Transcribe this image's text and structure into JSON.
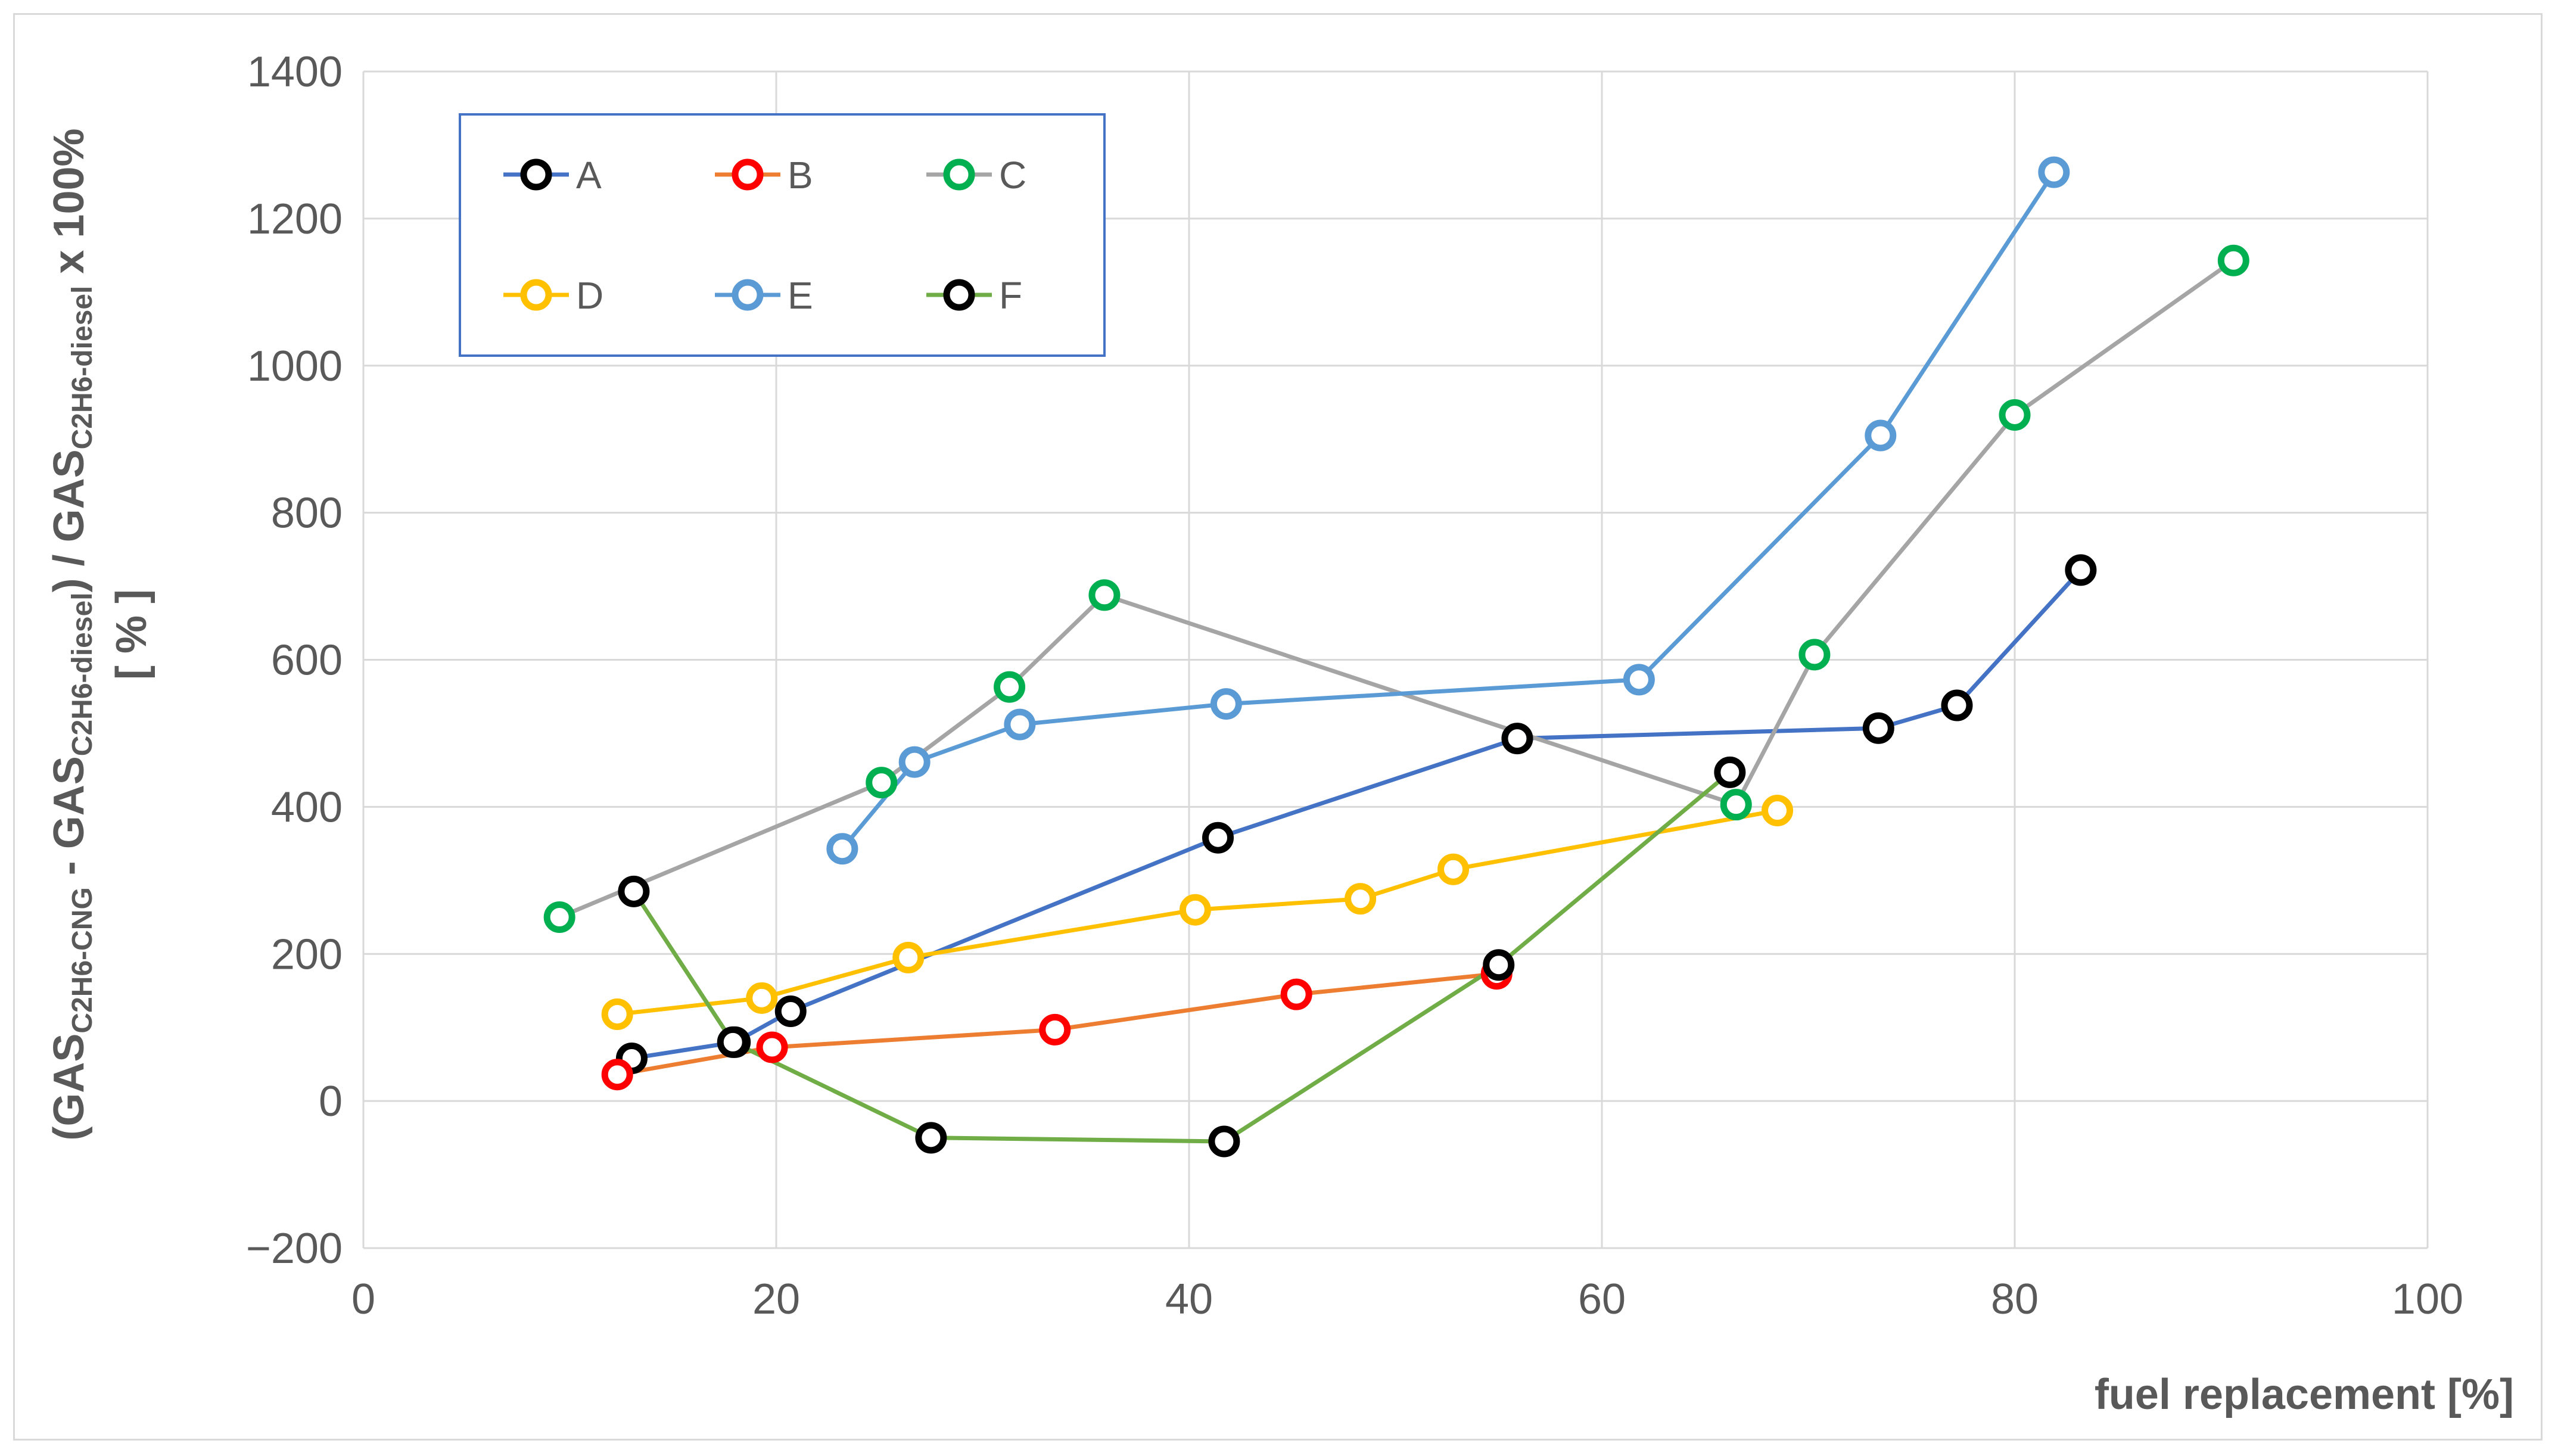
{
  "chart_data": {
    "type": "scatter",
    "title": "",
    "xlabel": "fuel replacement [%]",
    "ylabel": {
      "line1_parts": [
        {
          "text": "(GAS",
          "sub": false
        },
        {
          "text": "C2H6-CNG",
          "sub": true
        },
        {
          "text": " - GAS",
          "sub": false
        },
        {
          "text": "C2H6-diesel",
          "sub": true
        },
        {
          "text": ") / GAS",
          "sub": false
        },
        {
          "text": "C2H6-diesel",
          "sub": true
        },
        {
          "text": " x 100%",
          "sub": false
        }
      ],
      "line2": "[  %  ]"
    },
    "xlim": [
      0,
      100
    ],
    "ylim": [
      -200,
      1400
    ],
    "xticks": [
      "0",
      "20",
      "40",
      "60",
      "80",
      "100"
    ],
    "yticks": [
      "−200",
      "0",
      "200",
      "400",
      "600",
      "800",
      "1000",
      "1200",
      "1400"
    ],
    "grid": true,
    "legend_position": "top-left",
    "series": [
      {
        "name": "A",
        "line_color": "#4472c4",
        "marker_color": "#000000",
        "x": [
          13,
          18,
          20.7,
          41.4,
          55.9,
          73.4,
          77.2,
          83.2
        ],
        "y": [
          58,
          80,
          122,
          358,
          493,
          507,
          538,
          722
        ]
      },
      {
        "name": "B",
        "line_color": "#ed7d31",
        "marker_color": "#ff0000",
        "x": [
          12.3,
          19.8,
          33.5,
          45.2,
          54.9
        ],
        "y": [
          36,
          73,
          97,
          145,
          173
        ]
      },
      {
        "name": "C",
        "line_color": "#a5a5a5",
        "marker_color": "#00b050",
        "x": [
          9.5,
          25.1,
          31.3,
          35.9,
          66.5,
          70.3,
          80,
          90.6
        ],
        "y": [
          250,
          433,
          563,
          688,
          403,
          607,
          933,
          1143
        ]
      },
      {
        "name": "D",
        "line_color": "#ffc000",
        "marker_color": "#ffc000",
        "x": [
          12.3,
          19.3,
          26.4,
          40.3,
          48.3,
          52.8,
          68.5
        ],
        "y": [
          118,
          140,
          195,
          260,
          275,
          315,
          395
        ]
      },
      {
        "name": "E",
        "line_color": "#5b9bd5",
        "marker_color": "#5b9bd5",
        "x": [
          23.2,
          26.7,
          31.8,
          41.8,
          61.8,
          73.5,
          81.9
        ],
        "y": [
          343,
          461,
          512,
          540,
          573,
          905,
          1263
        ]
      },
      {
        "name": "F",
        "line_color": "#70ad47",
        "marker_color": "#000000",
        "x": [
          13.1,
          17.9,
          27.5,
          41.7,
          55,
          66.2
        ],
        "y": [
          285,
          80,
          -50,
          -55,
          185,
          447
        ]
      }
    ]
  }
}
